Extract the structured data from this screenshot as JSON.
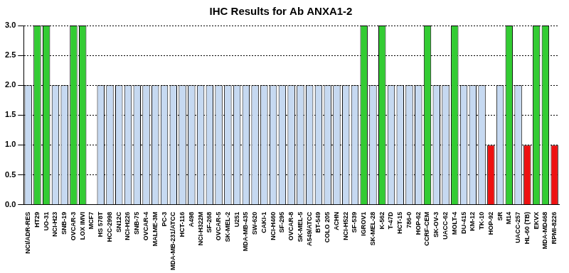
{
  "chart_data": {
    "type": "bar",
    "title": "IHC Results for Ab ANXA1-2",
    "categories": [
      "NCI/ADR-RES",
      "HT29",
      "UO-31",
      "NCI-H23",
      "SNB-19",
      "OVCAR-3",
      "LOX IMVI",
      "MCF7",
      "HS 578T",
      "HCC-2998",
      "SN12C",
      "NCI-H226",
      "SNB-75",
      "OVCAR-4",
      "MALME-3M",
      "PC-3",
      "MDA-MB-231/ATCC",
      "HCT-116",
      "A498",
      "NCI-H322M",
      "SF-268",
      "OVCAR-5",
      "SK-MEL-2",
      "U251",
      "MDA-MB-435",
      "SW-620",
      "CAKI-1",
      "NCI-H460",
      "SF-295",
      "OVCAR-8",
      "SK-MEL-5",
      "A549/ATCC",
      "BT-549",
      "COLO 205",
      "ACHN",
      "NCI-H522",
      "SF-539",
      "IGROV1",
      "SK-MEL-28",
      "K-562",
      "T-47D",
      "HCT-15",
      "786-0",
      "HOP-62",
      "CCRF-CEM",
      "SK-OV-3",
      "UACC-62",
      "MOLT-4",
      "DU-415",
      "KM-12",
      "TK-10",
      "HOP-92",
      "SR",
      "M14",
      "UACC-257",
      "HL-60 (TB)",
      "EKVX",
      "MDA-MD468",
      "RPMI-8226"
    ],
    "values": [
      2,
      3,
      3,
      2,
      2,
      3,
      3,
      null,
      2,
      2,
      2,
      2,
      2,
      2,
      2,
      2,
      2,
      2,
      2,
      2,
      2,
      2,
      2,
      2,
      2,
      2,
      2,
      2,
      2,
      2,
      2,
      2,
      2,
      2,
      2,
      2,
      2,
      3,
      2,
      3,
      2,
      2,
      2,
      2,
      3,
      2,
      2,
      3,
      2,
      2,
      2,
      1,
      2,
      3,
      2,
      1,
      3,
      3,
      1
    ],
    "colors": [
      "#c6d9f1",
      "#33cc33",
      "#33cc33",
      "#c6d9f1",
      "#c6d9f1",
      "#33cc33",
      "#33cc33",
      "#c6d9f1",
      "#c6d9f1",
      "#c6d9f1",
      "#c6d9f1",
      "#c6d9f1",
      "#c6d9f1",
      "#c6d9f1",
      "#c6d9f1",
      "#c6d9f1",
      "#c6d9f1",
      "#c6d9f1",
      "#c6d9f1",
      "#c6d9f1",
      "#c6d9f1",
      "#c6d9f1",
      "#c6d9f1",
      "#c6d9f1",
      "#c6d9f1",
      "#c6d9f1",
      "#c6d9f1",
      "#c6d9f1",
      "#c6d9f1",
      "#c6d9f1",
      "#c6d9f1",
      "#c6d9f1",
      "#c6d9f1",
      "#c6d9f1",
      "#c6d9f1",
      "#c6d9f1",
      "#c6d9f1",
      "#33cc33",
      "#c6d9f1",
      "#33cc33",
      "#c6d9f1",
      "#c6d9f1",
      "#c6d9f1",
      "#c6d9f1",
      "#33cc33",
      "#c6d9f1",
      "#c6d9f1",
      "#33cc33",
      "#c6d9f1",
      "#c6d9f1",
      "#c6d9f1",
      "#ee1111",
      "#c6d9f1",
      "#33cc33",
      "#c6d9f1",
      "#ee1111",
      "#33cc33",
      "#33cc33",
      "#ee1111"
    ],
    "ylim": [
      0,
      3
    ],
    "yticks": [
      {
        "value": 0,
        "label": "0.0"
      },
      {
        "value": 0.5,
        "label": "0.5"
      },
      {
        "value": 1,
        "label": "1.0"
      },
      {
        "value": 1.5,
        "label": "1.5"
      },
      {
        "value": 2,
        "label": "2.0"
      },
      {
        "value": 2.5,
        "label": "2.5"
      },
      {
        "value": 3,
        "label": "3.0"
      }
    ],
    "grid": true
  }
}
